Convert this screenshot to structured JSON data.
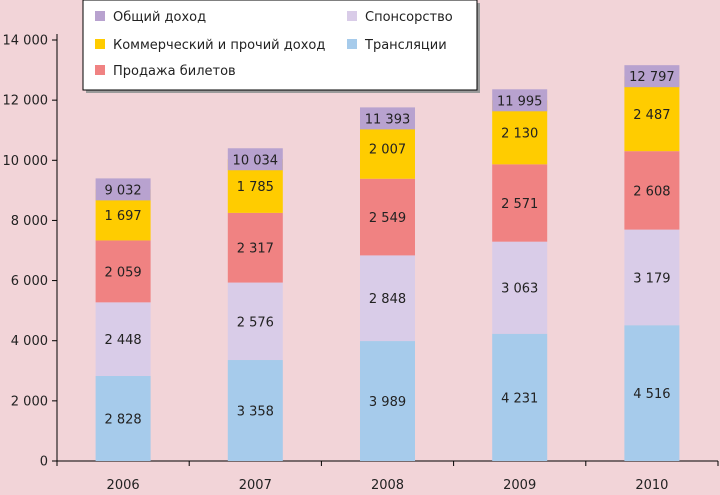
{
  "chart_data": {
    "type": "bar",
    "stacked": true,
    "categories": [
      "2006",
      "2007",
      "2008",
      "2009",
      "2010"
    ],
    "ylim": [
      0,
      14000
    ],
    "yticks": [
      "0",
      "2 000",
      "4 000",
      "6 000",
      "8 000",
      "10 000",
      "12 000",
      "14 000"
    ],
    "series": [
      {
        "name": "Трансляции",
        "color": "#a6cbeb",
        "values": [
          2828,
          3358,
          3989,
          4231,
          4516
        ],
        "labels": [
          "2 828",
          "3 358",
          "3 989",
          "4 231",
          "4 516"
        ]
      },
      {
        "name": "Спонсорство",
        "color": "#d9cce8",
        "values": [
          2448,
          2576,
          2848,
          3063,
          3179
        ],
        "labels": [
          "2 448",
          "2 576",
          "2 848",
          "3 063",
          "3 179"
        ]
      },
      {
        "name": "Продажа билетов",
        "color": "#f08282",
        "values": [
          2059,
          2317,
          2549,
          2571,
          2608
        ],
        "labels": [
          "2 059",
          "2 317",
          "2 549",
          "2 571",
          "2 608"
        ]
      },
      {
        "name": "Коммерческий и прочий доход",
        "color": "#ffcc00",
        "values": [
          1697,
          1785,
          2007,
          2130,
          2487
        ],
        "labels": [
          "1 697",
          "1 785",
          "2 007",
          "2 130",
          "2 487"
        ]
      }
    ],
    "totals": {
      "name": "Общий доход",
      "color": "#b8a2cf",
      "values": [
        9032,
        10034,
        11393,
        11995,
        12797
      ],
      "labels": [
        "9 032",
        "10 034",
        "11 393",
        "11 995",
        "12 797"
      ]
    },
    "legend_position": "top",
    "grid": false
  }
}
